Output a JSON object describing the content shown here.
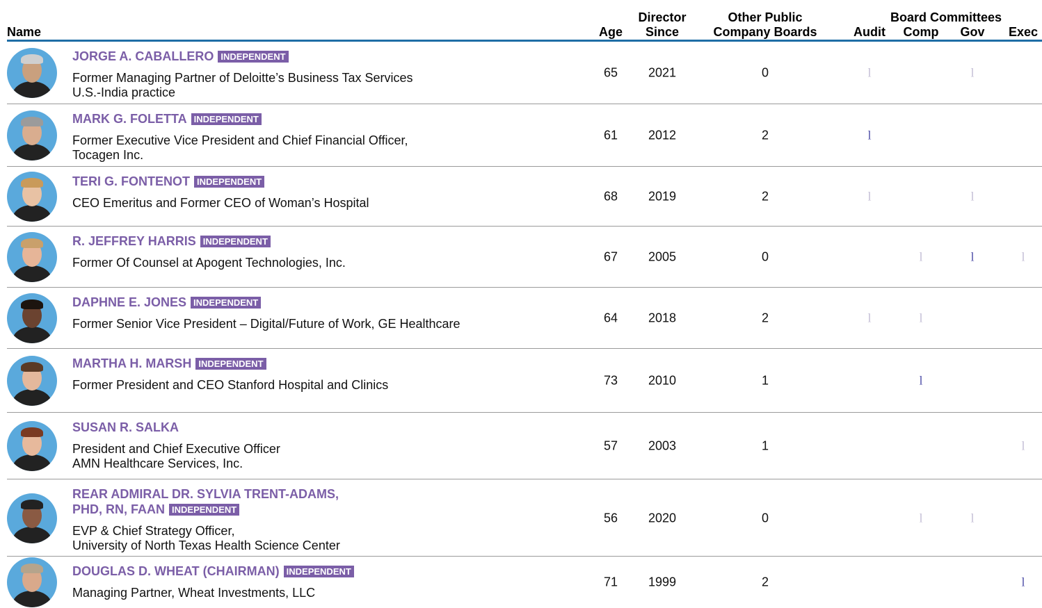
{
  "table": {
    "header": {
      "name": "Name",
      "age": "Age",
      "since": [
        "Director",
        "Since"
      ],
      "boards": [
        "Other Public",
        "Company Boards"
      ],
      "committees": "Board Committees",
      "committee_names": [
        "Audit",
        "Comp",
        "Gov",
        "Exec"
      ]
    },
    "colors": {
      "member": "#c4bfd6",
      "chair": "#4f4fa8"
    },
    "rows": [
      {
        "name": [
          "JORGE A. CABALLERO"
        ],
        "badge": "INDEPENDENT",
        "description": [
          "Former Managing Partner of Deloitte’s Business Tax Services",
          "U.S.-India practice"
        ],
        "age": 65,
        "since": 2021,
        "boards": 0,
        "committees": [
          {
            "mark": "l",
            "color": "#c4bfd6"
          },
          null,
          {
            "mark": "l",
            "color": "#c4bfd6"
          },
          null
        ]
      },
      {
        "name": [
          "MARK G. FOLETTA"
        ],
        "badge": "INDEPENDENT",
        "description": [
          "Former Executive Vice President and Chief Financial Officer,",
          "Tocagen Inc."
        ],
        "age": 61,
        "since": 2012,
        "boards": 2,
        "committees": [
          {
            "mark": "l",
            "color": "#4f4fa8"
          },
          null,
          null,
          null
        ]
      },
      {
        "name": [
          "TERI G. FONTENOT"
        ],
        "badge": "INDEPENDENT",
        "description": [
          "CEO Emeritus and Former CEO of Woman’s Hospital"
        ],
        "age": 68,
        "since": 2019,
        "boards": 2,
        "committees": [
          {
            "mark": "l",
            "color": "#c4bfd6"
          },
          null,
          {
            "mark": "l",
            "color": "#c4bfd6"
          },
          null
        ]
      },
      {
        "name": [
          "R. JEFFREY HARRIS"
        ],
        "badge": "INDEPENDENT",
        "description": [
          "Former Of Counsel at Apogent Technologies, Inc."
        ],
        "age": 67,
        "since": 2005,
        "boards": 0,
        "committees": [
          null,
          {
            "mark": "l",
            "color": "#c4bfd6"
          },
          {
            "mark": "l",
            "color": "#4f4fa8"
          },
          {
            "mark": "l",
            "color": "#c4bfd6"
          }
        ]
      },
      {
        "name": [
          "DAPHNE E. JONES"
        ],
        "badge": "INDEPENDENT",
        "description": [
          "Former Senior Vice President – Digital/Future of Work, GE Healthcare"
        ],
        "age": 64,
        "since": 2018,
        "boards": 2,
        "committees": [
          {
            "mark": "l",
            "color": "#c4bfd6"
          },
          {
            "mark": "l",
            "color": "#c4bfd6"
          },
          null,
          null
        ]
      },
      {
        "name": [
          "MARTHA H. MARSH"
        ],
        "badge": "INDEPENDENT",
        "description": [
          "Former President and CEO Stanford Hospital and Clinics"
        ],
        "age": 73,
        "since": 2010,
        "boards": 1,
        "committees": [
          null,
          {
            "mark": "l",
            "color": "#4f4fa8"
          },
          null,
          null
        ]
      },
      {
        "name": [
          "SUSAN R. SALKA"
        ],
        "description": [
          "President and Chief Executive Officer",
          "AMN Healthcare Services, Inc."
        ],
        "age": 57,
        "since": 2003,
        "boards": 1,
        "committees": [
          null,
          null,
          null,
          {
            "mark": "l",
            "color": "#c4bfd6"
          }
        ]
      },
      {
        "name": [
          "REAR ADMIRAL DR. SYLVIA TRENT-ADAMS,",
          "PHD, RN, FAAN"
        ],
        "badge": "INDEPENDENT",
        "description": [
          "EVP & Chief Strategy Officer,",
          "University of North Texas Health Science Center"
        ],
        "age": 56,
        "since": 2020,
        "boards": 0,
        "committees": [
          null,
          {
            "mark": "l",
            "color": "#c4bfd6"
          },
          {
            "mark": "l",
            "color": "#c4bfd6"
          },
          null
        ]
      },
      {
        "name": [
          "DOUGLAS D. WHEAT (CHAIRMAN)"
        ],
        "badge": "INDEPENDENT",
        "description": [
          "Managing Partner, Wheat Investments, LLC"
        ],
        "age": 71,
        "since": 1999,
        "boards": 2,
        "committees": [
          null,
          null,
          null,
          {
            "mark": "l",
            "color": "#4f4fa8"
          }
        ]
      }
    ]
  }
}
